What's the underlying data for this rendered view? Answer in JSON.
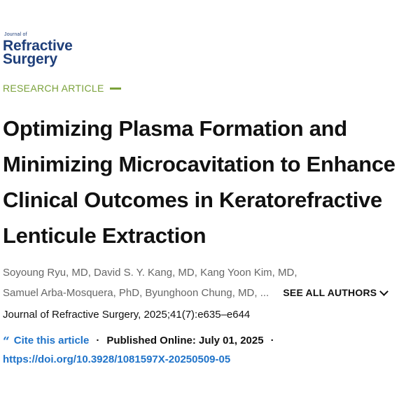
{
  "logo": {
    "small": "Journal of",
    "line1": "Refractive",
    "line2": "Surgery"
  },
  "article_type": "RESEARCH ARTICLE",
  "title_lines": [
    "Optimizing Plasma Formation and",
    "Minimizing Microcavitation to Enhance",
    "Clinical Outcomes in Keratorefractive",
    "Lenticule Extraction"
  ],
  "authors": {
    "line1": "Soyoung Ryu, MD, David S. Y. Kang, MD, Kang Yoon Kim, MD,",
    "line2": "Samuel Arba-Mosquera, PhD, Byunghoon Chung, MD, ...",
    "see_all_label": "SEE ALL AUTHORS"
  },
  "citation": "Journal of Refractive Surgery, 2025;41(7):e635–e644",
  "meta": {
    "cite_icon": "quote-icon",
    "cite_label": "Cite this article",
    "separator": "·",
    "published": "Published Online: July 01, 2025"
  },
  "doi": "https://doi.org/10.3928/1081597X-20250509-05",
  "colors": {
    "logo": "#1f3f7a",
    "article_type": "#7aa13a",
    "link": "#1f73c9",
    "author_text": "#666666"
  }
}
